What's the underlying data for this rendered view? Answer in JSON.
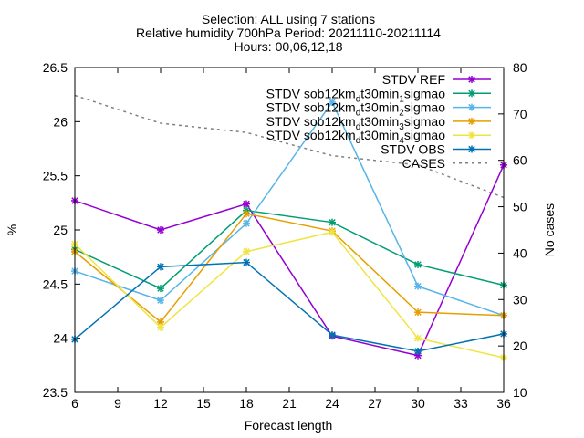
{
  "chart_data": {
    "type": "line",
    "title_lines": [
      "Selection: ALL using     7 stations",
      "Relative humidity 700hPa   Period: 20211110-20211114",
      "Hours: 00,06,12,18"
    ],
    "xlabel": "Forecast length",
    "ylabel": "%",
    "y2label": "No cases",
    "x": [
      6,
      12,
      18,
      24,
      30,
      36
    ],
    "xticks": [
      "6",
      "9",
      "12",
      "15",
      "18",
      "21",
      "24",
      "27",
      "30",
      "33",
      "36"
    ],
    "xlim": [
      6,
      36
    ],
    "ylim": [
      23.5,
      26.5
    ],
    "yticks": [
      "23.5",
      "24",
      "24.5",
      "25",
      "25.5",
      "26",
      "26.5"
    ],
    "y2lim": [
      10,
      80
    ],
    "y2ticks": [
      "10",
      "20",
      "30",
      "40",
      "50",
      "60",
      "70",
      "80"
    ],
    "legend_position": "top-right",
    "grid": false,
    "series": [
      {
        "name": "STDV REF",
        "color": "#9400d3",
        "values": [
          25.27,
          25.0,
          25.24,
          24.02,
          23.84,
          25.6
        ]
      },
      {
        "name": "STDV sob12km_dt30min_1sigmao",
        "label_parts": [
          "STDV sob12km",
          "d",
          "t30min",
          "1",
          "sigmao"
        ],
        "color": "#009e73",
        "values": [
          24.82,
          24.46,
          25.18,
          25.07,
          24.68,
          24.49
        ]
      },
      {
        "name": "STDV sob12km_dt30min_2sigmao",
        "label_parts": [
          "STDV sob12km",
          "d",
          "t30min",
          "2",
          "sigmao"
        ],
        "color": "#56b4e9",
        "values": [
          24.62,
          24.35,
          25.06,
          26.18,
          24.48,
          24.21
        ]
      },
      {
        "name": "STDV sob12km_dt30min_3sigmao",
        "label_parts": [
          "STDV sob12km",
          "d",
          "t30min",
          "3",
          "sigmao"
        ],
        "color": "#e69f00",
        "values": [
          24.8,
          24.15,
          25.15,
          24.99,
          24.24,
          24.21
        ]
      },
      {
        "name": "STDV sob12km_dt30min_4sigmao",
        "label_parts": [
          "STDV sob12km",
          "d",
          "t30min",
          "4",
          "sigmao"
        ],
        "color": "#f0e442",
        "values": [
          24.87,
          24.1,
          24.8,
          24.98,
          24.0,
          23.82
        ]
      },
      {
        "name": "STDV OBS",
        "color": "#0072b2",
        "values": [
          23.99,
          24.66,
          24.7,
          24.03,
          23.88,
          24.04
        ]
      }
    ],
    "cases": {
      "name": "CASES",
      "color": "#808080",
      "axis": "y2",
      "x": [
        6,
        12,
        18,
        24,
        30,
        36
      ],
      "values": [
        74,
        68,
        66,
        61,
        59,
        52
      ]
    }
  }
}
